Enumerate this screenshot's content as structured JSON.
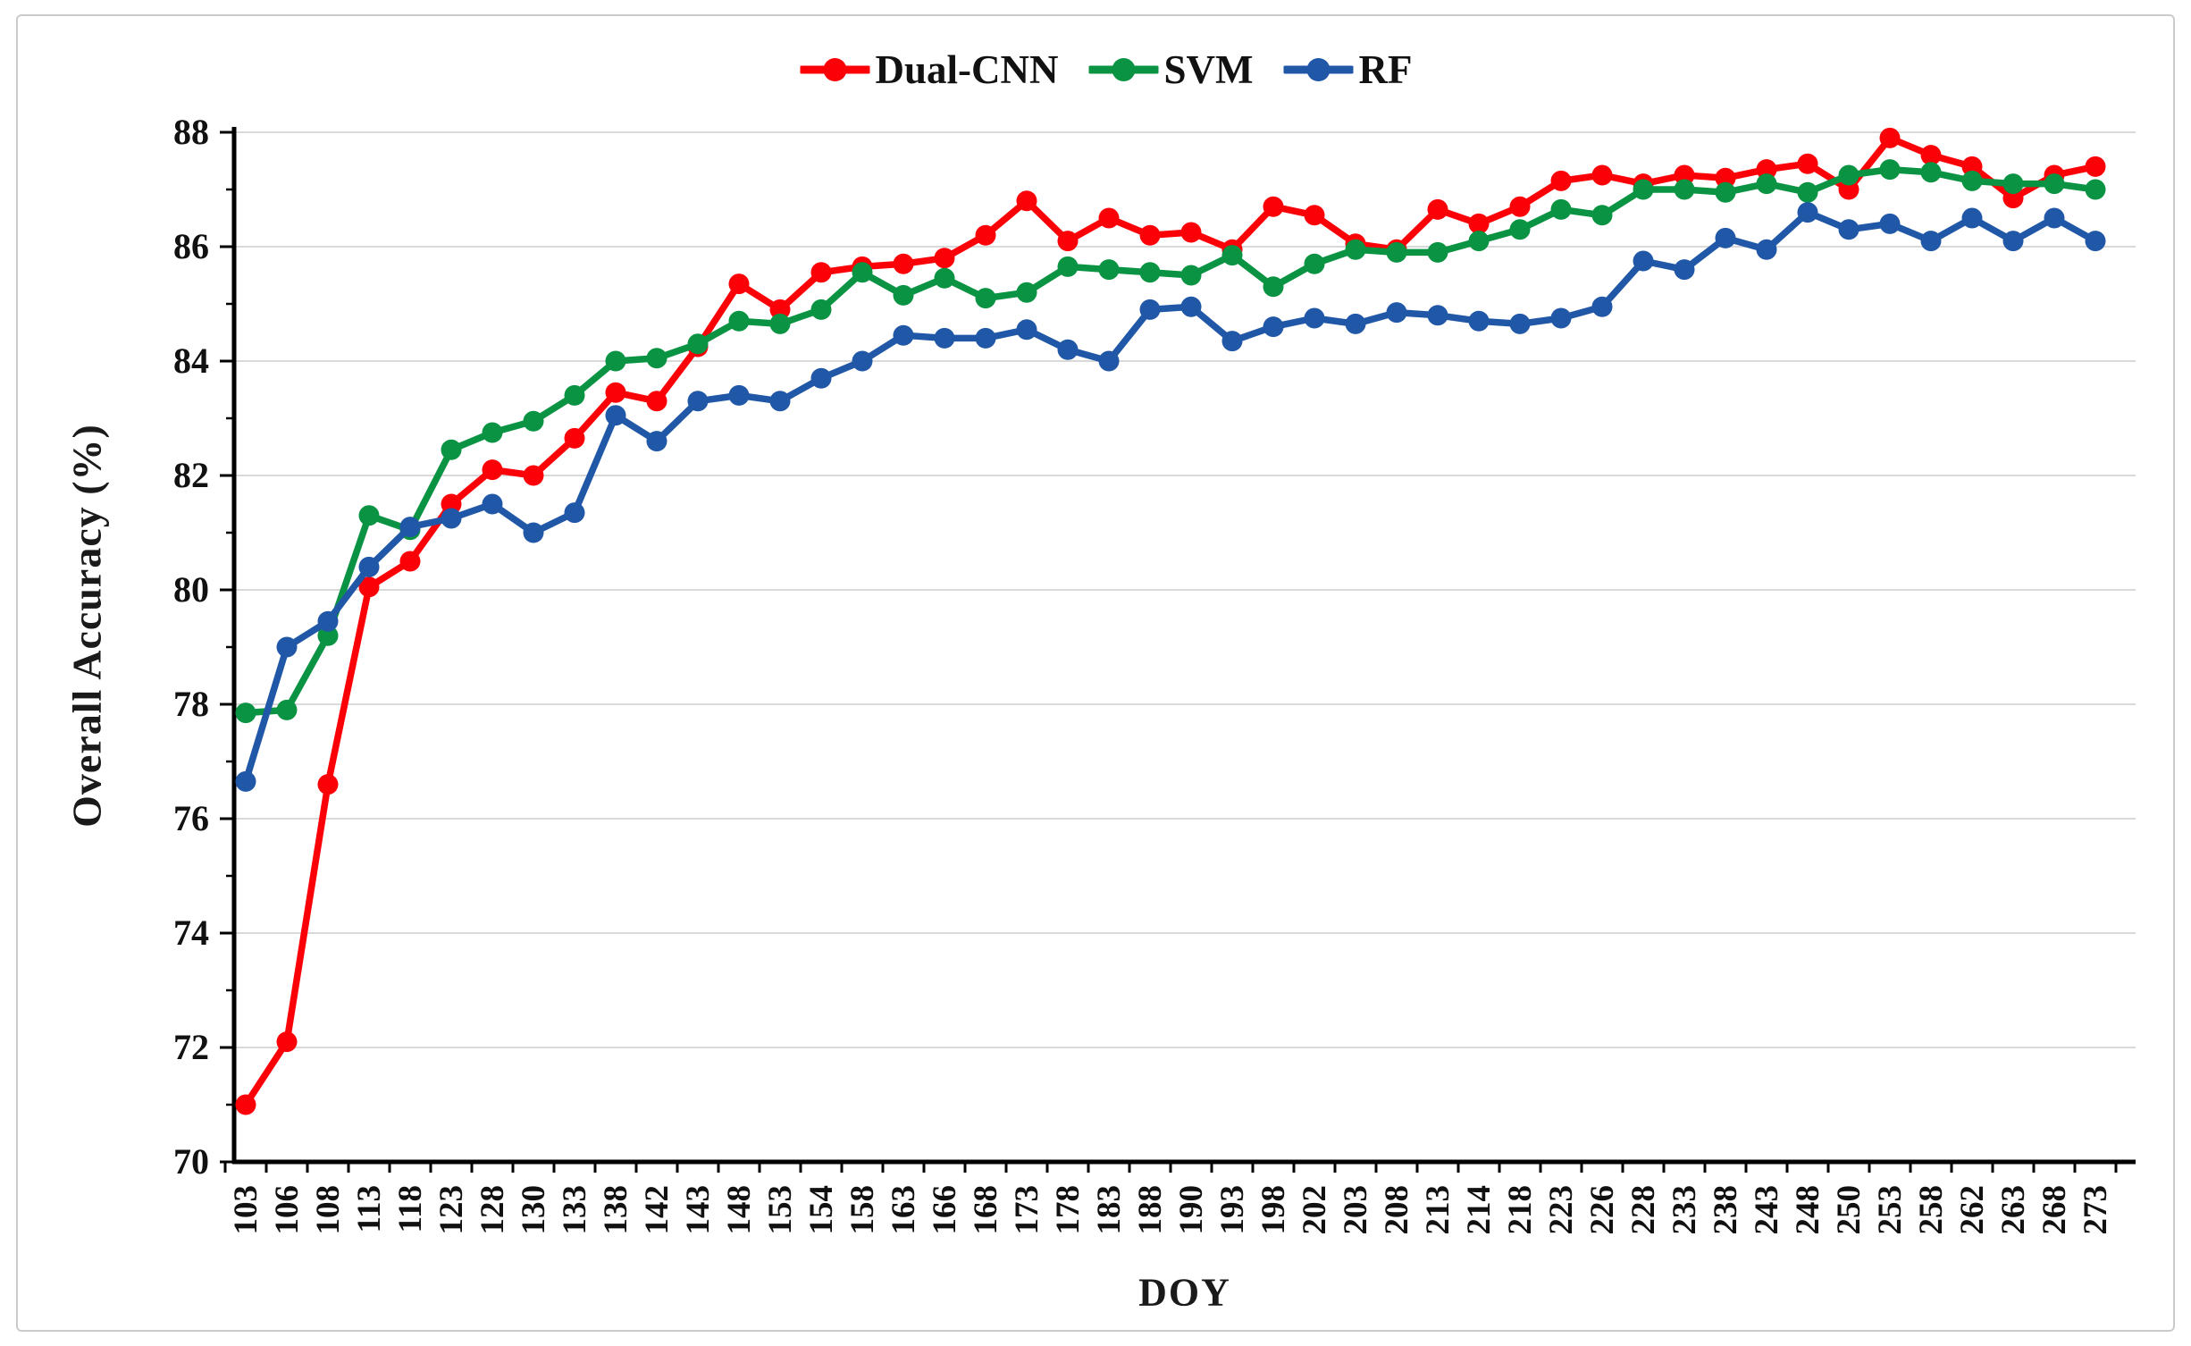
{
  "chart_data": {
    "type": "line",
    "title": "",
    "xlabel": "DOY",
    "ylabel": "Overall Accuracy (%)",
    "ylim": [
      70,
      88
    ],
    "y_ticks": [
      70,
      72,
      74,
      76,
      78,
      80,
      82,
      84,
      86,
      88
    ],
    "grid": "horizontal",
    "legend_position": "top-center",
    "categories": [
      103,
      106,
      108,
      113,
      118,
      123,
      128,
      130,
      133,
      138,
      142,
      143,
      148,
      153,
      154,
      158,
      163,
      166,
      168,
      173,
      178,
      183,
      188,
      190,
      193,
      198,
      202,
      203,
      208,
      213,
      214,
      218,
      223,
      226,
      228,
      233,
      238,
      243,
      248,
      250,
      253,
      258,
      262,
      263,
      268,
      273
    ],
    "series": [
      {
        "name": "Dual-CNN",
        "color": "#fb0007",
        "values": [
          71.0,
          72.1,
          76.6,
          80.05,
          80.5,
          81.5,
          82.1,
          82.0,
          82.65,
          83.45,
          83.3,
          84.25,
          85.35,
          84.9,
          85.55,
          85.65,
          85.7,
          85.8,
          86.2,
          86.8,
          86.1,
          86.5,
          86.2,
          86.25,
          85.95,
          86.7,
          86.55,
          86.05,
          85.95,
          86.65,
          86.4,
          86.7,
          87.15,
          87.25,
          87.1,
          87.25,
          87.2,
          87.35,
          87.45,
          87.0,
          87.9,
          87.6,
          87.4,
          86.85,
          87.25,
          87.4
        ]
      },
      {
        "name": "SVM",
        "color": "#0a9342",
        "values": [
          77.85,
          77.9,
          79.2,
          81.3,
          81.05,
          82.45,
          82.75,
          82.95,
          83.4,
          84.0,
          84.05,
          84.3,
          84.7,
          84.65,
          84.9,
          85.55,
          85.15,
          85.45,
          85.1,
          85.2,
          85.65,
          85.6,
          85.55,
          85.5,
          85.85,
          85.3,
          85.7,
          85.95,
          85.9,
          85.9,
          86.1,
          86.3,
          86.65,
          86.55,
          87.0,
          87.0,
          86.95,
          87.1,
          86.95,
          87.25,
          87.35,
          87.3,
          87.15,
          87.1,
          87.1,
          87.0
        ]
      },
      {
        "name": "RF",
        "color": "#2057a7",
        "values": [
          76.65,
          79.0,
          79.45,
          80.4,
          81.1,
          81.25,
          81.5,
          81.0,
          81.35,
          83.05,
          82.6,
          83.3,
          83.4,
          83.3,
          83.7,
          84.0,
          84.45,
          84.4,
          84.4,
          84.55,
          84.2,
          84.0,
          84.9,
          84.95,
          84.35,
          84.6,
          84.75,
          84.65,
          84.85,
          84.8,
          84.7,
          84.65,
          84.75,
          84.95,
          85.75,
          85.6,
          86.15,
          85.95,
          86.6,
          86.3,
          86.4,
          86.1,
          86.5,
          86.1,
          86.5,
          86.1
        ]
      }
    ]
  }
}
